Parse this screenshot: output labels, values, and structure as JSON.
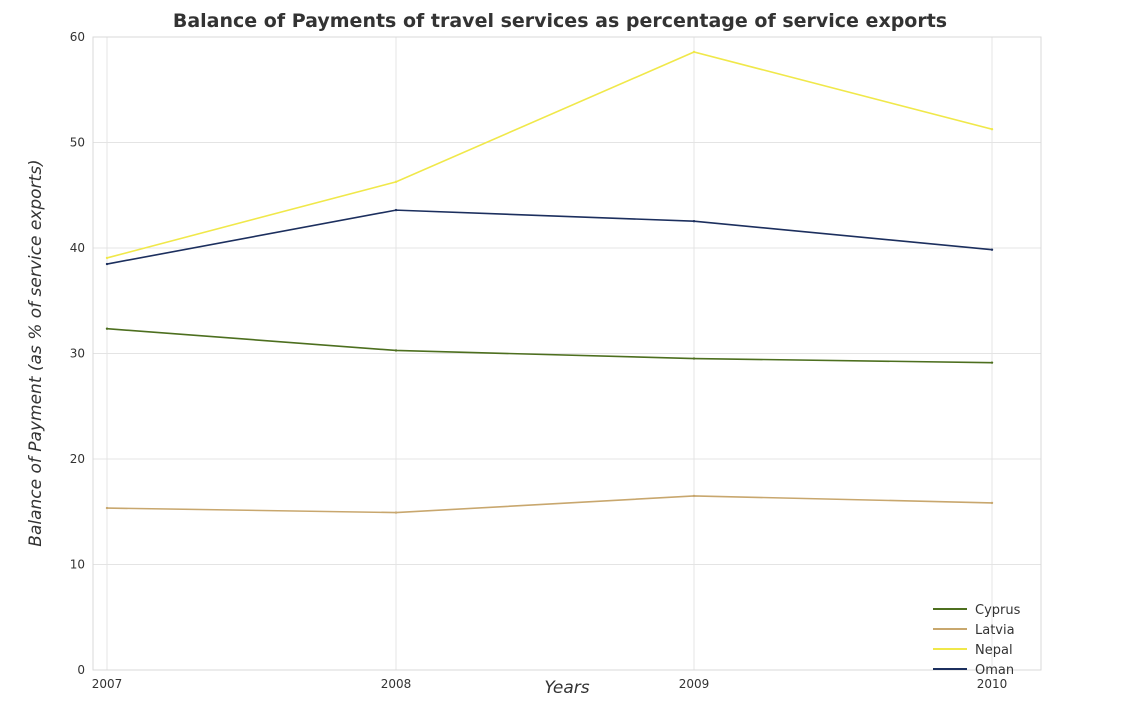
{
  "chart_data": {
    "type": "line",
    "title": "Balance of Payments of travel services as percentage of service exports",
    "xlabel": "Years",
    "ylabel": "Balance of Payment (as % of service exports)",
    "x": [
      "2007",
      "2008",
      "2009",
      "2010"
    ],
    "ylim": [
      0,
      60
    ],
    "yticks": [
      0,
      10,
      20,
      30,
      40,
      50,
      60
    ],
    "grid": true,
    "legend_position": "bottom-right",
    "series": [
      {
        "name": "Cyprus",
        "color": "#4d6f1f",
        "values": [
          32.35,
          30.29,
          29.52,
          29.13
        ]
      },
      {
        "name": "Latvia",
        "color": "#c8a76e",
        "values": [
          15.35,
          14.92,
          16.5,
          15.84
        ]
      },
      {
        "name": "Nepal",
        "color": "#f0e84a",
        "values": [
          39.06,
          46.27,
          58.58,
          51.26
        ]
      },
      {
        "name": "Oman",
        "color": "#1c2f5e",
        "values": [
          38.48,
          43.59,
          42.54,
          39.84
        ]
      }
    ]
  }
}
